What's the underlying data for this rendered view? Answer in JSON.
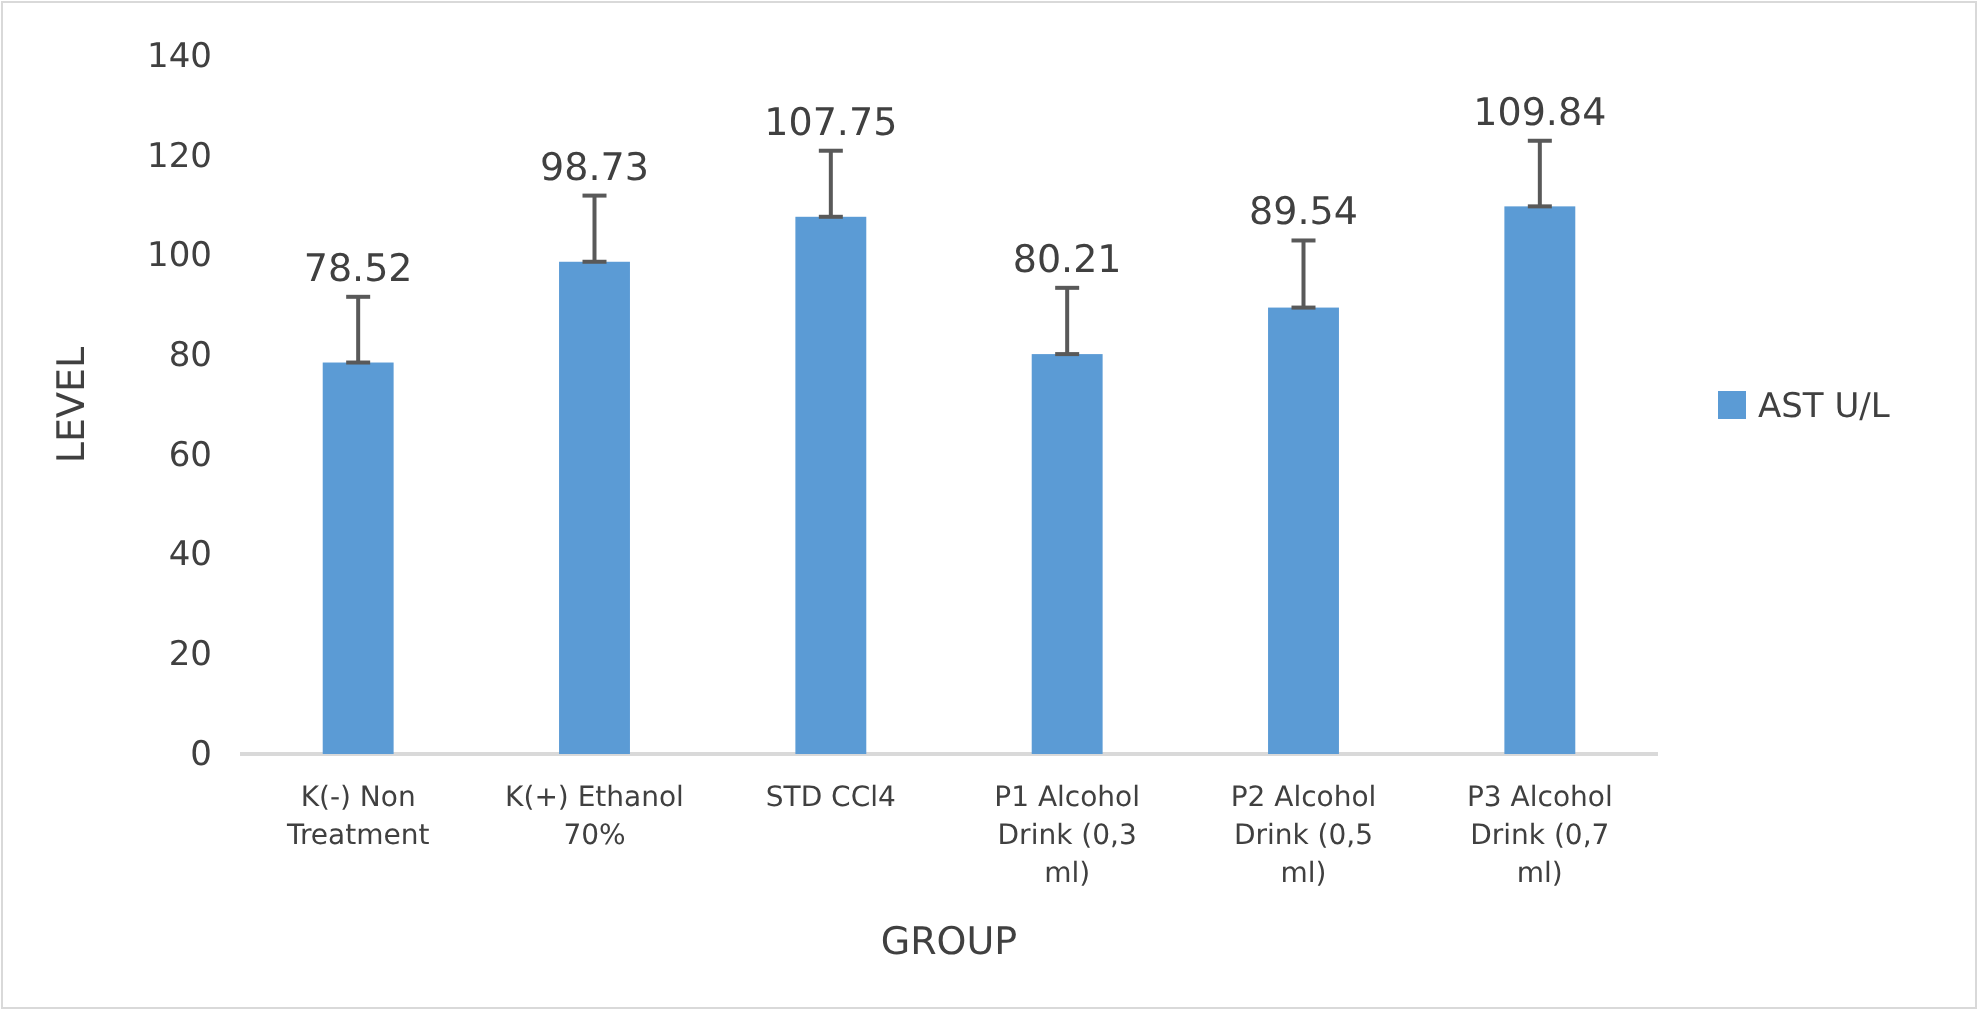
{
  "chart_data": {
    "type": "bar",
    "xlabel": "GROUP",
    "ylabel": "LEVEL",
    "categories": [
      "K(-) Non Treatment",
      "K(+) Ethanol 70%",
      "STD CCl4",
      "P1 Alcohol Drink (0,3 ml)",
      "P2 Alcohol Drink (0,5 ml)",
      "P3 Alcohol Drink (0,7 ml)"
    ],
    "series": [
      {
        "name": "AST U/L",
        "color": "#5b9bd5",
        "values": [
          78.52,
          98.73,
          107.75,
          80.21,
          89.54,
          109.84
        ],
        "errors": [
          [
            78.52,
            91.7
          ],
          [
            98.73,
            112
          ],
          [
            107.75,
            121
          ],
          [
            80.21,
            93.5
          ],
          [
            89.54,
            103
          ],
          [
            109.84,
            123
          ]
        ]
      }
    ],
    "ylim": [
      0,
      140
    ],
    "yticks": [
      0,
      20,
      40,
      60,
      80,
      100,
      120,
      140
    ],
    "data_labels": true,
    "legend": "right",
    "grid": false
  }
}
